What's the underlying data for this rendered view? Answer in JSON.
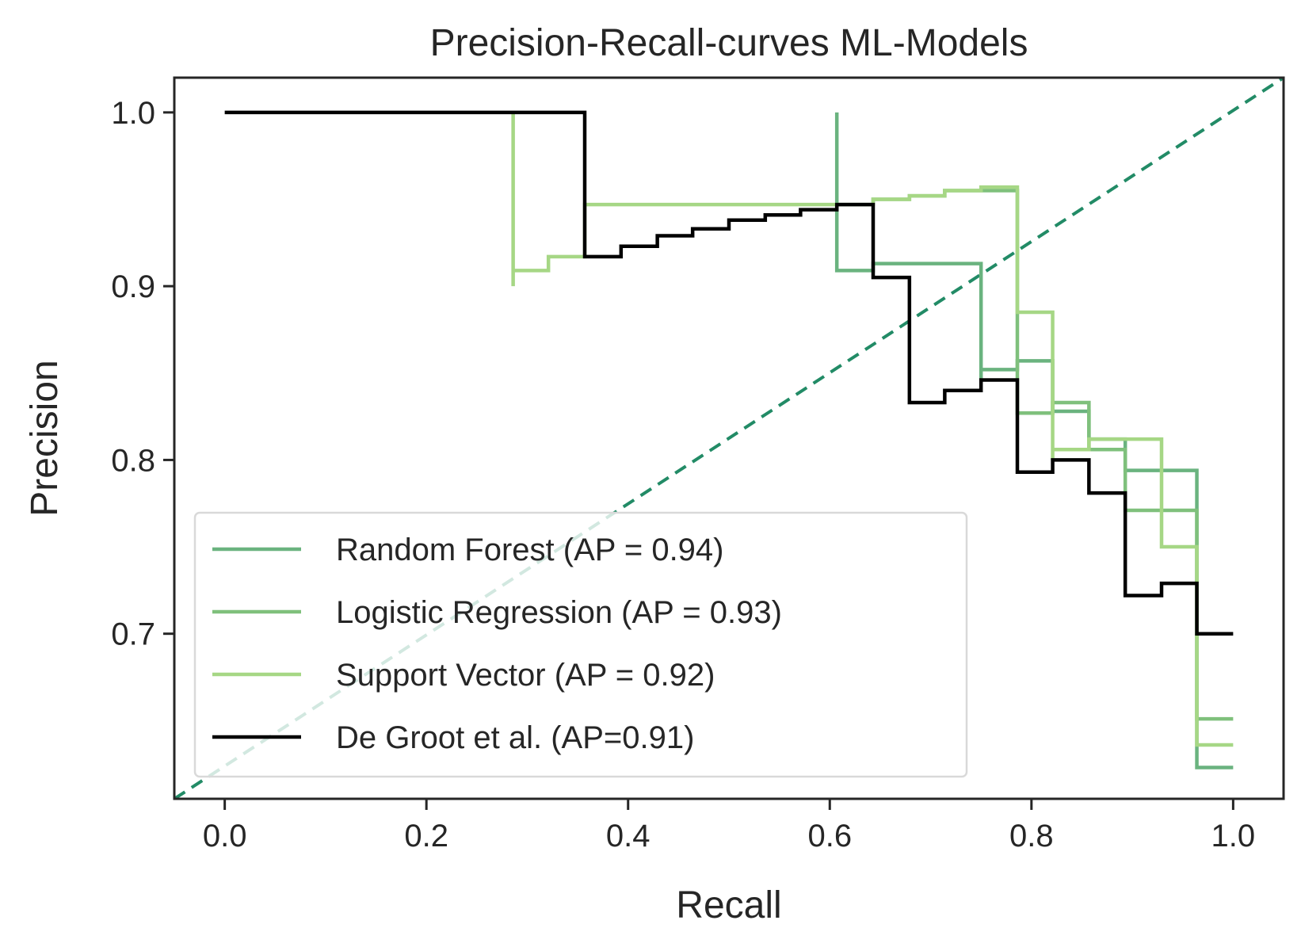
{
  "chart_data": {
    "type": "line",
    "title": "Precision-Recall-curves ML-Models",
    "xlabel": "Recall",
    "ylabel": "Precision",
    "xlim": [
      -0.05,
      1.05
    ],
    "ylim": [
      0.605,
      1.02
    ],
    "xticks": [
      0.0,
      0.2,
      0.4,
      0.6,
      0.8,
      1.0
    ],
    "xtick_labels": [
      "0.0",
      "0.2",
      "0.4",
      "0.6",
      "0.8",
      "1.0"
    ],
    "yticks": [
      0.7,
      0.8,
      0.9,
      1.0
    ],
    "ytick_labels": [
      "0.7",
      "0.8",
      "0.9",
      "1.0"
    ],
    "grid": false,
    "legend_position": "lower-left",
    "step_style": "pre",
    "series": [
      {
        "name": "Random Forest (AP = 0.94)",
        "color": "#6ab37f",
        "x": [
          0.607,
          0.607,
          0.643,
          0.714,
          0.75,
          0.75,
          0.786,
          0.821,
          0.857,
          0.893,
          0.929,
          0.964,
          0.964,
          1.0
        ],
        "y": [
          1.0,
          0.947,
          0.909,
          0.913,
          0.913,
          0.846,
          0.852,
          0.857,
          0.828,
          0.812,
          0.794,
          0.794,
          0.623,
          0.623
        ]
      },
      {
        "name": "Logistic Regression (AP = 0.93)",
        "color": "#7fc07c",
        "x": [
          0.643,
          0.679,
          0.714,
          0.75,
          0.786,
          0.786,
          0.821,
          0.857,
          0.893,
          0.929,
          0.964,
          0.964,
          1.0
        ],
        "y": [
          0.947,
          0.95,
          0.952,
          0.955,
          0.955,
          0.852,
          0.827,
          0.833,
          0.806,
          0.771,
          0.771,
          0.651,
          0.651
        ]
      },
      {
        "name": "Support Vector (AP = 0.92)",
        "color": "#a6d785",
        "x": [
          0.286,
          0.286,
          0.321,
          0.357,
          0.643,
          0.679,
          0.714,
          0.75,
          0.786,
          0.786,
          0.821,
          0.821,
          0.857,
          0.893,
          0.929,
          0.929,
          0.964,
          0.964,
          1.0
        ],
        "y": [
          1.0,
          0.9,
          0.909,
          0.917,
          0.947,
          0.95,
          0.952,
          0.955,
          0.957,
          0.885,
          0.885,
          0.8,
          0.806,
          0.812,
          0.812,
          0.75,
          0.75,
          0.636,
          0.636
        ]
      },
      {
        "name": "De Groot et al. (AP=0.91)",
        "color": "#000000",
        "x": [
          0.0,
          0.357,
          0.393,
          0.429,
          0.464,
          0.5,
          0.536,
          0.571,
          0.607,
          0.643,
          0.679,
          0.714,
          0.75,
          0.786,
          0.821,
          0.857,
          0.893,
          0.929,
          0.964,
          1.0
        ],
        "y": [
          1.0,
          1.0,
          0.917,
          0.923,
          0.929,
          0.933,
          0.938,
          0.941,
          0.944,
          0.947,
          0.905,
          0.833,
          0.84,
          0.846,
          0.793,
          0.8,
          0.781,
          0.722,
          0.729,
          0.7
        ]
      }
    ],
    "reference_line": {
      "color": "#228b66",
      "style": "dashed",
      "x": [
        -0.05,
        1.05
      ],
      "y": [
        0.605,
        1.02
      ]
    }
  }
}
